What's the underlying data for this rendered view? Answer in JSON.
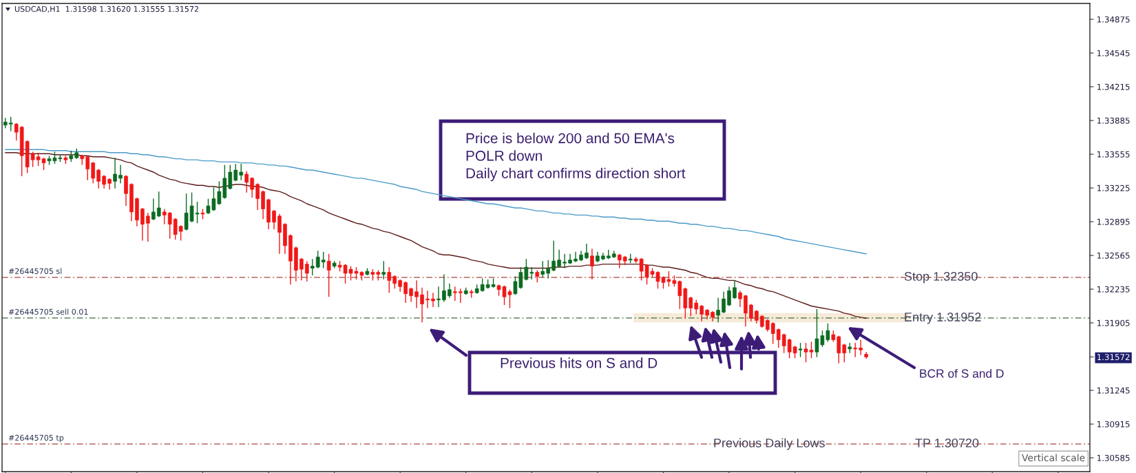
{
  "chart_data": {
    "type": "candlestick",
    "title": "USDCAD,H1  1.31598 1.31620 1.31555 1.31572",
    "categories": [
      null,
      null,
      null,
      null,
      null,
      null,
      null,
      null,
      null,
      null,
      null,
      null,
      null,
      null,
      null,
      null,
      null,
      null,
      null,
      null,
      null,
      null,
      null,
      null,
      null,
      null,
      null,
      null,
      null,
      null,
      null,
      null,
      null,
      null,
      null,
      null,
      null,
      null,
      null,
      null,
      null,
      null,
      null,
      null,
      null,
      null,
      null,
      null,
      null,
      null,
      null,
      null,
      null,
      null,
      null,
      null,
      null,
      null,
      null,
      null,
      null,
      null,
      null,
      null,
      null,
      null,
      null,
      null,
      null,
      null,
      null,
      null,
      null,
      null,
      null,
      null,
      null,
      null,
      null,
      null,
      null,
      null,
      null,
      null,
      null,
      null,
      null,
      null,
      null,
      null,
      null,
      null,
      null,
      null,
      null,
      null,
      null,
      null,
      null,
      null,
      null,
      null,
      null,
      null,
      null,
      null,
      null,
      null,
      null,
      null,
      null,
      null,
      null,
      null,
      null,
      null,
      null,
      null,
      null,
      null,
      null,
      null,
      null,
      null,
      null,
      null,
      null,
      null,
      null,
      null,
      null,
      null,
      null,
      null,
      null,
      null,
      null,
      null,
      null,
      null,
      null,
      null,
      null,
      null,
      null,
      null,
      null,
      null,
      null,
      null,
      null,
      null,
      null,
      null,
      null,
      null,
      null,
      null
    ],
    "ohlc": [
      [
        1.3384,
        1.3391,
        1.3381,
        1.3387
      ],
      [
        1.3385,
        1.3392,
        1.3378,
        1.3386
      ],
      [
        1.3385,
        1.3386,
        1.3369,
        1.3377
      ],
      [
        1.3382,
        1.3383,
        1.3334,
        1.3354
      ],
      [
        1.3368,
        1.3369,
        1.3337,
        1.3343
      ],
      [
        1.3356,
        1.3358,
        1.3343,
        1.335
      ],
      [
        1.3353,
        1.3357,
        1.3344,
        1.335
      ],
      [
        1.3351,
        1.3352,
        1.334,
        1.3347
      ],
      [
        1.3349,
        1.3354,
        1.3345,
        1.3351
      ],
      [
        1.3349,
        1.3358,
        1.3346,
        1.3352
      ],
      [
        1.3351,
        1.3355,
        1.3348,
        1.3352
      ],
      [
        1.3352,
        1.3354,
        1.3346,
        1.335
      ],
      [
        1.3351,
        1.3359,
        1.3348,
        1.3354
      ],
      [
        1.3352,
        1.3361,
        1.3351,
        1.3357
      ],
      [
        1.3354,
        1.3355,
        1.3345,
        1.3351
      ],
      [
        1.3353,
        1.3354,
        1.333,
        1.3341
      ],
      [
        1.3347,
        1.3348,
        1.3327,
        1.3332
      ],
      [
        1.334,
        1.3341,
        1.3322,
        1.3329
      ],
      [
        1.3334,
        1.3335,
        1.3322,
        1.3326
      ],
      [
        1.3331,
        1.3332,
        1.3321,
        1.3327
      ],
      [
        1.3329,
        1.3352,
        1.3322,
        1.3336
      ],
      [
        1.3332,
        1.3345,
        1.3327,
        1.3335
      ],
      [
        1.3334,
        1.3335,
        1.3305,
        1.3317
      ],
      [
        1.3326,
        1.3327,
        1.329,
        1.3299
      ],
      [
        1.3312,
        1.3313,
        1.3285,
        1.3291
      ],
      [
        1.3302,
        1.3303,
        1.3271,
        1.3287
      ],
      [
        1.3295,
        1.3298,
        1.327,
        1.3288
      ],
      [
        1.3292,
        1.3312,
        1.3291,
        1.3299
      ],
      [
        1.3295,
        1.3319,
        1.3294,
        1.3303
      ],
      [
        1.3299,
        1.3302,
        1.3287,
        1.3296
      ],
      [
        1.3298,
        1.3299,
        1.3273,
        1.3287
      ],
      [
        1.3292,
        1.3293,
        1.3272,
        1.3277
      ],
      [
        1.3285,
        1.3286,
        1.3271,
        1.328
      ],
      [
        1.3282,
        1.3317,
        1.3281,
        1.3298
      ],
      [
        1.329,
        1.3318,
        1.3289,
        1.3305
      ],
      [
        1.3297,
        1.3309,
        1.3288,
        1.3298
      ],
      [
        1.3298,
        1.3302,
        1.3292,
        1.3297
      ],
      [
        1.3298,
        1.3312,
        1.3297,
        1.3305
      ],
      [
        1.3301,
        1.3323,
        1.33,
        1.3312
      ],
      [
        1.3307,
        1.3329,
        1.3306,
        1.3319
      ],
      [
        1.3313,
        1.3345,
        1.3312,
        1.3332
      ],
      [
        1.3322,
        1.3345,
        1.3321,
        1.3338
      ],
      [
        1.333,
        1.3346,
        1.3329,
        1.334
      ],
      [
        1.3335,
        1.3346,
        1.333,
        1.3338
      ],
      [
        1.3336,
        1.3339,
        1.3318,
        1.3328
      ],
      [
        1.3332,
        1.3333,
        1.3313,
        1.3321
      ],
      [
        1.3326,
        1.3327,
        1.3301,
        1.3312
      ],
      [
        1.3319,
        1.332,
        1.3292,
        1.3302
      ],
      [
        1.3311,
        1.3312,
        1.3282,
        1.3289
      ],
      [
        1.33,
        1.3301,
        1.3282,
        1.3289
      ],
      [
        1.3295,
        1.3297,
        1.3258,
        1.3279
      ],
      [
        1.3287,
        1.3288,
        1.3258,
        1.3266
      ],
      [
        1.3276,
        1.3277,
        1.3228,
        1.3251
      ],
      [
        1.3264,
        1.3265,
        1.3231,
        1.3242
      ],
      [
        1.3253,
        1.3254,
        1.3232,
        1.3243
      ],
      [
        1.3248,
        1.3251,
        1.3231,
        1.3239
      ],
      [
        1.3244,
        1.3253,
        1.3237,
        1.3246
      ],
      [
        1.3245,
        1.3261,
        1.3244,
        1.3255
      ],
      [
        1.325,
        1.326,
        1.3244,
        1.3252
      ],
      [
        1.3251,
        1.3258,
        1.3216,
        1.3242
      ],
      [
        1.3246,
        1.3251,
        1.3244,
        1.3249
      ],
      [
        1.3247,
        1.3251,
        1.3241,
        1.3245
      ],
      [
        1.3247,
        1.3248,
        1.3229,
        1.3239
      ],
      [
        1.3243,
        1.3246,
        1.3232,
        1.3239
      ],
      [
        1.3241,
        1.3245,
        1.3233,
        1.3239
      ],
      [
        1.324,
        1.3241,
        1.3232,
        1.3237
      ],
      [
        1.3238,
        1.3244,
        1.3237,
        1.3241
      ],
      [
        1.324,
        1.3243,
        1.3232,
        1.3238
      ],
      [
        1.324,
        1.3242,
        1.3232,
        1.3238
      ],
      [
        1.3238,
        1.3251,
        1.3233,
        1.324
      ],
      [
        1.324,
        1.3245,
        1.322,
        1.3232
      ],
      [
        1.3236,
        1.3237,
        1.3224,
        1.3229
      ],
      [
        1.3232,
        1.3233,
        1.3221,
        1.3226
      ],
      [
        1.323,
        1.3231,
        1.321,
        1.3219
      ],
      [
        1.3224,
        1.3225,
        1.3211,
        1.3217
      ],
      [
        1.3221,
        1.3232,
        1.3205,
        1.3216
      ],
      [
        1.3218,
        1.3225,
        1.3191,
        1.3209
      ],
      [
        1.3214,
        1.3222,
        1.3205,
        1.3213
      ],
      [
        1.3214,
        1.322,
        1.3206,
        1.3212
      ],
      [
        1.3213,
        1.3226,
        1.3206,
        1.3214
      ],
      [
        1.3213,
        1.3238,
        1.3211,
        1.3222
      ],
      [
        1.3217,
        1.3229,
        1.3215,
        1.3223
      ],
      [
        1.3221,
        1.3226,
        1.3212,
        1.322
      ],
      [
        1.3221,
        1.3224,
        1.321,
        1.322
      ],
      [
        1.3219,
        1.3225,
        1.3218,
        1.3222
      ],
      [
        1.3221,
        1.3223,
        1.3215,
        1.322
      ],
      [
        1.322,
        1.3228,
        1.3219,
        1.3224
      ],
      [
        1.3222,
        1.3234,
        1.3221,
        1.3228
      ],
      [
        1.3225,
        1.3233,
        1.3224,
        1.3228
      ],
      [
        1.3226,
        1.3234,
        1.3225,
        1.3228
      ],
      [
        1.3227,
        1.3228,
        1.3217,
        1.3223
      ],
      [
        1.3226,
        1.3227,
        1.3208,
        1.3216
      ],
      [
        1.3221,
        1.3223,
        1.3205,
        1.3218
      ],
      [
        1.3219,
        1.3236,
        1.3218,
        1.3231
      ],
      [
        1.3225,
        1.3245,
        1.3224,
        1.324
      ],
      [
        1.3233,
        1.3253,
        1.3232,
        1.3245
      ],
      [
        1.3239,
        1.3245,
        1.3233,
        1.324
      ],
      [
        1.324,
        1.3242,
        1.323,
        1.3236
      ],
      [
        1.3238,
        1.3251,
        1.3235,
        1.3241
      ],
      [
        1.3239,
        1.3252,
        1.3234,
        1.3244
      ],
      [
        1.3242,
        1.3271,
        1.3241,
        1.3251
      ],
      [
        1.3246,
        1.3262,
        1.3245,
        1.3252
      ],
      [
        1.3249,
        1.3258,
        1.3244,
        1.325
      ],
      [
        1.3249,
        1.3258,
        1.3248,
        1.3252
      ],
      [
        1.3251,
        1.326,
        1.325,
        1.3253
      ],
      [
        1.3252,
        1.3261,
        1.3251,
        1.3257
      ],
      [
        1.3254,
        1.3268,
        1.3253,
        1.3259
      ],
      [
        1.3256,
        1.3263,
        1.3233,
        1.3246
      ],
      [
        1.3251,
        1.326,
        1.325,
        1.3256
      ],
      [
        1.3253,
        1.3259,
        1.3252,
        1.3256
      ],
      [
        1.3254,
        1.3262,
        1.3253,
        1.3256
      ],
      [
        1.3255,
        1.3261,
        1.3254,
        1.3258
      ],
      [
        1.3257,
        1.3258,
        1.3244,
        1.3252
      ],
      [
        1.3255,
        1.3256,
        1.3247,
        1.3251
      ],
      [
        1.3252,
        1.3258,
        1.3249,
        1.3253
      ],
      [
        1.3253,
        1.3255,
        1.3249,
        1.3251
      ],
      [
        1.3253,
        1.3254,
        1.3232,
        1.3241
      ],
      [
        1.3247,
        1.3248,
        1.3228,
        1.3235
      ],
      [
        1.3241,
        1.3244,
        1.3235,
        1.3238
      ],
      [
        1.324,
        1.3241,
        1.3224,
        1.3231
      ],
      [
        1.3235,
        1.3236,
        1.3224,
        1.323
      ],
      [
        1.3233,
        1.3241,
        1.3226,
        1.3231
      ],
      [
        1.3232,
        1.3237,
        1.3226,
        1.3229
      ],
      [
        1.3231,
        1.3232,
        1.3204,
        1.3217
      ],
      [
        1.3224,
        1.3225,
        1.3195,
        1.3205
      ],
      [
        1.3215,
        1.3216,
        1.3197,
        1.3205
      ],
      [
        1.321,
        1.3213,
        1.3199,
        1.3204
      ],
      [
        1.3207,
        1.3208,
        1.3192,
        1.3199
      ],
      [
        1.3203,
        1.3204,
        1.3194,
        1.3198
      ],
      [
        1.3201,
        1.3202,
        1.3192,
        1.3196
      ],
      [
        1.3198,
        1.3215,
        1.3191,
        1.3203
      ],
      [
        1.3201,
        1.3221,
        1.32,
        1.3214
      ],
      [
        1.3208,
        1.3226,
        1.3207,
        1.3222
      ],
      [
        1.3215,
        1.3232,
        1.3214,
        1.3225
      ],
      [
        1.322,
        1.3222,
        1.3206,
        1.3214
      ],
      [
        1.3217,
        1.3218,
        1.3187,
        1.32
      ],
      [
        1.3208,
        1.3209,
        1.3192,
        1.3195
      ],
      [
        1.3202,
        1.3203,
        1.319,
        1.3193
      ],
      [
        1.3197,
        1.3198,
        1.3186,
        1.3187
      ],
      [
        1.3193,
        1.3194,
        1.3182,
        1.3184
      ],
      [
        1.319,
        1.3191,
        1.317,
        1.318
      ],
      [
        1.3184,
        1.3185,
        1.3166,
        1.3174
      ],
      [
        1.3179,
        1.318,
        1.3161,
        1.3168
      ],
      [
        1.3174,
        1.3175,
        1.3156,
        1.3162
      ],
      [
        1.3167,
        1.3168,
        1.3156,
        1.3161
      ],
      [
        1.3164,
        1.3171,
        1.3157,
        1.3165
      ],
      [
        1.3165,
        1.3171,
        1.3152,
        1.3162
      ],
      [
        1.3164,
        1.3172,
        1.3156,
        1.3162
      ],
      [
        1.3162,
        1.3204,
        1.3157,
        1.3175
      ],
      [
        1.3169,
        1.3183,
        1.3167,
        1.3178
      ],
      [
        1.3174,
        1.319,
        1.3172,
        1.3183
      ],
      [
        1.3179,
        1.3183,
        1.3172,
        1.3174
      ],
      [
        1.3177,
        1.3178,
        1.3151,
        1.3161
      ],
      [
        1.3169,
        1.317,
        1.3152,
        1.3161
      ],
      [
        1.3165,
        1.3171,
        1.3161,
        1.3167
      ],
      [
        1.3166,
        1.3171,
        1.3157,
        1.3165
      ],
      [
        1.3166,
        1.3174,
        1.3159,
        1.3164
      ],
      [
        1.31598,
        1.3162,
        1.31555,
        1.31572
      ]
    ],
    "colors": [
      "#0b6b21",
      "#0b6b21",
      "#f01818",
      "#f01818",
      "#f01818",
      "#f01818",
      "#f01818",
      "#f01818",
      "#0b6b21",
      "#0b6b21",
      "#0b6b21",
      "#f01818",
      "#0b6b21",
      "#0b6b21",
      "#f01818",
      "#f01818",
      "#f01818",
      "#f01818",
      "#f01818",
      "#f01818",
      "#0b6b21",
      "#0b6b21",
      "#f01818",
      "#f01818",
      "#f01818",
      "#f01818",
      "#f01818",
      "#0b6b21",
      "#0b6b21",
      "#f01818",
      "#f01818",
      "#f01818",
      "#f01818",
      "#0b6b21",
      "#0b6b21",
      "#0b6b21",
      "#f01818",
      "#0b6b21",
      "#0b6b21",
      "#0b6b21",
      "#0b6b21",
      "#0b6b21",
      "#0b6b21",
      "#0b6b21",
      "#f01818",
      "#f01818",
      "#f01818",
      "#f01818",
      "#f01818",
      "#f01818",
      "#f01818",
      "#f01818",
      "#f01818",
      "#f01818",
      "#f01818",
      "#f01818",
      "#0b6b21",
      "#0b6b21",
      "#0b6b21",
      "#f01818",
      "#0b6b21",
      "#f01818",
      "#f01818",
      "#f01818",
      "#f01818",
      "#f01818",
      "#0b6b21",
      "#f01818",
      "#f01818",
      "#0b6b21",
      "#f01818",
      "#f01818",
      "#f01818",
      "#f01818",
      "#f01818",
      "#f01818",
      "#f01818",
      "#f01818",
      "#f01818",
      "#0b6b21",
      "#0b6b21",
      "#0b6b21",
      "#f01818",
      "#f01818",
      "#0b6b21",
      "#f01818",
      "#0b6b21",
      "#0b6b21",
      "#0b6b21",
      "#0b6b21",
      "#f01818",
      "#f01818",
      "#f01818",
      "#0b6b21",
      "#0b6b21",
      "#0b6b21",
      "#0b6b21",
      "#f01818",
      "#0b6b21",
      "#0b6b21",
      "#0b6b21",
      "#0b6b21",
      "#0b6b21",
      "#0b6b21",
      "#0b6b21",
      "#0b6b21",
      "#0b6b21",
      "#f01818",
      "#0b6b21",
      "#0b6b21",
      "#0b6b21",
      "#0b6b21",
      "#f01818",
      "#f01818",
      "#0b6b21",
      "#f01818",
      "#f01818",
      "#f01818",
      "#f01818",
      "#f01818",
      "#f01818",
      "#f01818",
      "#f01818",
      "#f01818",
      "#f01818",
      "#f01818",
      "#f01818",
      "#f01818",
      "#f01818",
      "#f01818",
      "#0b6b21",
      "#0b6b21",
      "#0b6b21",
      "#0b6b21",
      "#f01818",
      "#f01818",
      "#f01818",
      "#f01818",
      "#f01818",
      "#f01818",
      "#f01818",
      "#f01818",
      "#f01818",
      "#f01818",
      "#f01818",
      "#0b6b21",
      "#f01818",
      "#f01818",
      "#0b6b21",
      "#0b6b21",
      "#0b6b21",
      "#f01818",
      "#f01818",
      "#f01818",
      "#0b6b21",
      "#f01818",
      "#f01818",
      "#f01818"
    ],
    "series": [
      {
        "type": "line",
        "color": "#4a9ac8",
        "values": [
          1.336,
          1.336,
          1.336,
          1.336,
          1.336,
          1.336,
          1.336,
          1.336,
          1.3359,
          1.3359,
          1.3359,
          1.3359,
          1.3358,
          1.3358,
          1.3358,
          1.3358,
          1.3358,
          1.3358,
          1.3358,
          1.3357,
          1.3357,
          1.3357,
          1.3357,
          1.3356,
          1.3356,
          1.3355,
          1.3355,
          1.3354,
          1.3353,
          1.3353,
          1.3352,
          1.3351,
          1.3351,
          1.335,
          1.335,
          1.335,
          1.3349,
          1.3349,
          1.3349,
          1.3348,
          1.3348,
          1.3348,
          1.3348,
          1.3347,
          1.3347,
          1.3347,
          1.3346,
          1.3346,
          1.3345,
          1.3345,
          1.3344,
          1.3344,
          1.3343,
          1.3342,
          1.3341,
          1.334,
          1.334,
          1.3339,
          1.3338,
          1.3337,
          1.3336,
          1.3335,
          1.3334,
          1.3333,
          1.3332,
          1.3332,
          1.3331,
          1.333,
          1.3329,
          1.3328,
          1.3327,
          1.3326,
          1.3324,
          1.3323,
          1.3322,
          1.3321,
          1.3319,
          1.3318,
          1.3317,
          1.3316,
          1.3315,
          1.3314,
          1.3313,
          1.3312,
          1.3311,
          1.331,
          1.3309,
          1.3308,
          1.3307,
          1.3307,
          1.3306,
          1.3305,
          1.3304,
          1.3303,
          1.3303,
          1.3302,
          1.3301,
          1.33,
          1.33,
          1.3299,
          1.3298,
          1.3298,
          1.3297,
          1.3297,
          1.3296,
          1.3296,
          1.3296,
          1.3295,
          1.3295,
          1.3294,
          1.3294,
          1.3294,
          1.3293,
          1.3293,
          1.3292,
          1.3292,
          1.3292,
          1.3291,
          1.3291,
          1.329,
          1.329,
          1.329,
          1.3289,
          1.3288,
          1.3288,
          1.3287,
          1.3287,
          1.3286,
          1.3285,
          1.3285,
          1.3284,
          1.3283,
          1.3283,
          1.3282,
          1.3281,
          1.3281,
          1.328,
          1.3279,
          1.3278,
          1.3277,
          1.3276,
          1.3275,
          1.3273,
          1.3272,
          1.3271,
          1.327,
          1.3269,
          1.3268,
          1.3267,
          1.3266,
          1.3265,
          1.3264,
          1.3263,
          1.3262,
          1.3261,
          1.326,
          1.3259,
          1.3258
        ]
      },
      {
        "type": "line",
        "color": "#5c1a1a",
        "values": [
          1.3357,
          1.3357,
          1.3357,
          1.3356,
          1.3356,
          1.3356,
          1.3356,
          1.3356,
          1.3356,
          1.3355,
          1.3355,
          1.3355,
          1.3355,
          1.3355,
          1.3354,
          1.3354,
          1.3353,
          1.3353,
          1.3353,
          1.3352,
          1.3351,
          1.335,
          1.3348,
          1.3347,
          1.3344,
          1.3342,
          1.334,
          1.3338,
          1.3335,
          1.3333,
          1.3331,
          1.333,
          1.3328,
          1.3327,
          1.3326,
          1.3325,
          1.3325,
          1.3324,
          1.3324,
          1.3323,
          1.3324,
          1.3325,
          1.3326,
          1.3326,
          1.3325,
          1.3324,
          1.3324,
          1.3323,
          1.3321,
          1.332,
          1.3319,
          1.3317,
          1.3314,
          1.3312,
          1.331,
          1.3307,
          1.3305,
          1.3303,
          1.3301,
          1.3298,
          1.3296,
          1.3294,
          1.3292,
          1.329,
          1.3288,
          1.3287,
          1.3285,
          1.3283,
          1.3282,
          1.328,
          1.3279,
          1.3277,
          1.3275,
          1.3273,
          1.3271,
          1.3268,
          1.3265,
          1.3263,
          1.3261,
          1.3258,
          1.3257,
          1.3257,
          1.3256,
          1.3255,
          1.3254,
          1.3252,
          1.3251,
          1.325,
          1.3248,
          1.3247,
          1.3246,
          1.3245,
          1.3244,
          1.3244,
          1.3244,
          1.3244,
          1.3244,
          1.3244,
          1.3244,
          1.3244,
          1.3245,
          1.3245,
          1.3245,
          1.3246,
          1.3246,
          1.3246,
          1.3247,
          1.3247,
          1.3247,
          1.3248,
          1.3248,
          1.3248,
          1.3248,
          1.3248,
          1.3248,
          1.3248,
          1.3248,
          1.3247,
          1.3247,
          1.3246,
          1.3245,
          1.3245,
          1.3244,
          1.3243,
          1.3242,
          1.324,
          1.3239,
          1.3237,
          1.3235,
          1.3234,
          1.3234,
          1.3233,
          1.3232,
          1.3232,
          1.323,
          1.3228,
          1.3227,
          1.3225,
          1.3224,
          1.3222,
          1.3221,
          1.3219,
          1.3217,
          1.3215,
          1.3213,
          1.3211,
          1.3209,
          1.3207,
          1.3206,
          1.3205,
          1.3204,
          1.3203,
          1.3202,
          1.32,
          1.3199,
          1.3197,
          1.3196,
          1.3195
        ]
      }
    ],
    "ylim": [
      1.3045,
      1.3503
    ],
    "yticks": [
      1.34875,
      1.34545,
      1.34215,
      1.33885,
      1.33555,
      1.33225,
      1.32895,
      1.32565,
      1.32235,
      1.31905,
      1.31572,
      1.31245,
      1.30915,
      1.30585
    ],
    "tick_labels": "y",
    "ref_lines": [
      {
        "axis": "y",
        "value": 1.3235,
        "label": "#26445705 sl",
        "color": "#a5463c",
        "line_style": "dashdot"
      },
      {
        "axis": "y",
        "value": 1.31952,
        "label": "#26445705 sell 0.01",
        "color": "#3e6b3e",
        "line_style": "dashdot"
      },
      {
        "axis": "y",
        "value": 1.3072,
        "label": "#26445705 tp",
        "color": "#a5463c",
        "line_style": "dashdot"
      }
    ],
    "bands": [
      {
        "axis": "y",
        "from": 1.3191,
        "to": 1.32,
        "color": "#f6ead8"
      }
    ],
    "annotations": [
      "Price is below 200 and 50 EMA's\nPOLR down\nDaily chart confirms direction short",
      "Previous hits on S and D",
      "BCR of S and D",
      {
        "text": "Stop 1.32350",
        "y": 1.3235
      },
      {
        "text": "Entry 1.31952",
        "y": 1.31952
      },
      {
        "text": "TP 1.30720",
        "y": 1.3072
      },
      {
        "text": "Previous Daily Lows",
        "y": 1.3072
      },
      "Vertical scale"
    ]
  }
}
